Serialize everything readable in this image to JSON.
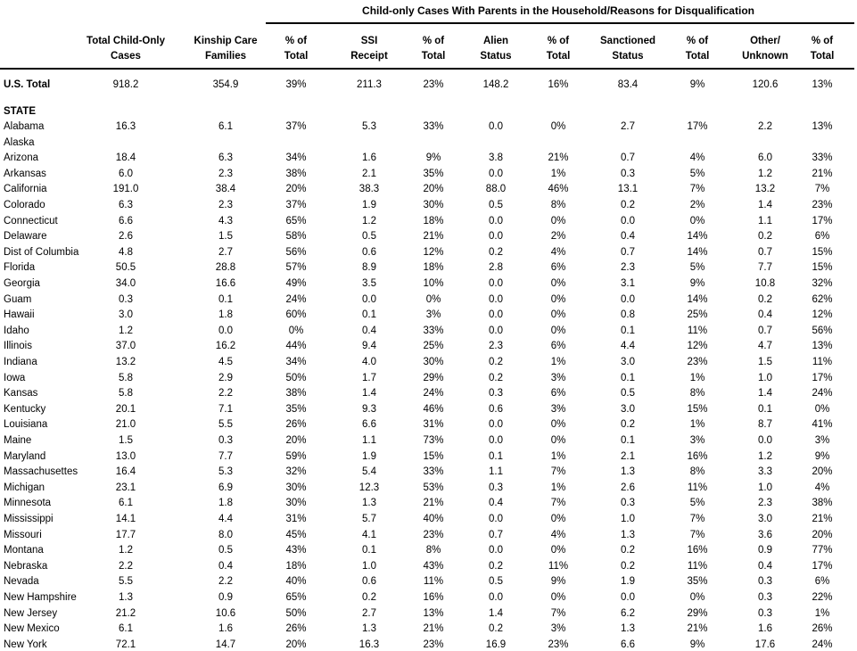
{
  "table": {
    "group_header": "Child-only Cases With Parents in the Household/Reasons for Disqualification",
    "columns": [
      [
        "Total Child-Only",
        "Cases"
      ],
      [
        "Kinship Care",
        "Families"
      ],
      [
        "% of",
        "Total"
      ],
      [
        "SSI",
        "Receipt"
      ],
      [
        "% of",
        "Total"
      ],
      [
        "Alien",
        "Status"
      ],
      [
        "% of",
        "Total"
      ],
      [
        "Sanctioned",
        "Status"
      ],
      [
        "% of",
        "Total"
      ],
      [
        "Other/",
        "Unknown"
      ],
      [
        "% of",
        "Total"
      ]
    ],
    "total_row": {
      "name": "U.S. Total",
      "values": [
        "918.2",
        "354.9",
        "39%",
        "211.3",
        "23%",
        "148.2",
        "16%",
        "83.4",
        "9%",
        "120.6",
        "13%"
      ]
    },
    "section_label": "STATE",
    "rows": [
      {
        "name": "Alabama",
        "values": [
          "16.3",
          "6.1",
          "37%",
          "5.3",
          "33%",
          "0.0",
          "0%",
          "2.7",
          "17%",
          "2.2",
          "13%"
        ]
      },
      {
        "name": "Alaska"
      },
      {
        "name": "Arizona",
        "values": [
          "18.4",
          "6.3",
          "34%",
          "1.6",
          "9%",
          "3.8",
          "21%",
          "0.7",
          "4%",
          "6.0",
          "33%"
        ]
      },
      {
        "name": "Arkansas",
        "values": [
          "6.0",
          "2.3",
          "38%",
          "2.1",
          "35%",
          "0.0",
          "1%",
          "0.3",
          "5%",
          "1.2",
          "21%"
        ]
      },
      {
        "name": "California",
        "values": [
          "191.0",
          "38.4",
          "20%",
          "38.3",
          "20%",
          "88.0",
          "46%",
          "13.1",
          "7%",
          "13.2",
          "7%"
        ]
      },
      {
        "name": "Colorado",
        "values": [
          "6.3",
          "2.3",
          "37%",
          "1.9",
          "30%",
          "0.5",
          "8%",
          "0.2",
          "2%",
          "1.4",
          "23%"
        ]
      },
      {
        "name": "Connecticut",
        "values": [
          "6.6",
          "4.3",
          "65%",
          "1.2",
          "18%",
          "0.0",
          "0%",
          "0.0",
          "0%",
          "1.1",
          "17%"
        ]
      },
      {
        "name": "Delaware",
        "values": [
          "2.6",
          "1.5",
          "58%",
          "0.5",
          "21%",
          "0.0",
          "2%",
          "0.4",
          "14%",
          "0.2",
          "6%"
        ]
      },
      {
        "name": "Dist of Columbia",
        "values": [
          "4.8",
          "2.7",
          "56%",
          "0.6",
          "12%",
          "0.2",
          "4%",
          "0.7",
          "14%",
          "0.7",
          "15%"
        ]
      },
      {
        "name": "Florida",
        "values": [
          "50.5",
          "28.8",
          "57%",
          "8.9",
          "18%",
          "2.8",
          "6%",
          "2.3",
          "5%",
          "7.7",
          "15%"
        ]
      },
      {
        "name": "Georgia",
        "values": [
          "34.0",
          "16.6",
          "49%",
          "3.5",
          "10%",
          "0.0",
          "0%",
          "3.1",
          "9%",
          "10.8",
          "32%"
        ]
      },
      {
        "name": "Guam",
        "values": [
          "0.3",
          "0.1",
          "24%",
          "0.0",
          "0%",
          "0.0",
          "0%",
          "0.0",
          "14%",
          "0.2",
          "62%"
        ]
      },
      {
        "name": "Hawaii",
        "values": [
          "3.0",
          "1.8",
          "60%",
          "0.1",
          "3%",
          "0.0",
          "0%",
          "0.8",
          "25%",
          "0.4",
          "12%"
        ]
      },
      {
        "name": "Idaho",
        "values": [
          "1.2",
          "0.0",
          "0%",
          "0.4",
          "33%",
          "0.0",
          "0%",
          "0.1",
          "11%",
          "0.7",
          "56%"
        ]
      },
      {
        "name": "Illinois",
        "values": [
          "37.0",
          "16.2",
          "44%",
          "9.4",
          "25%",
          "2.3",
          "6%",
          "4.4",
          "12%",
          "4.7",
          "13%"
        ]
      },
      {
        "name": "Indiana",
        "values": [
          "13.2",
          "4.5",
          "34%",
          "4.0",
          "30%",
          "0.2",
          "1%",
          "3.0",
          "23%",
          "1.5",
          "11%"
        ]
      },
      {
        "name": "Iowa",
        "values": [
          "5.8",
          "2.9",
          "50%",
          "1.7",
          "29%",
          "0.2",
          "3%",
          "0.1",
          "1%",
          "1.0",
          "17%"
        ]
      },
      {
        "name": "Kansas",
        "values": [
          "5.8",
          "2.2",
          "38%",
          "1.4",
          "24%",
          "0.3",
          "6%",
          "0.5",
          "8%",
          "1.4",
          "24%"
        ]
      },
      {
        "name": "Kentucky",
        "values": [
          "20.1",
          "7.1",
          "35%",
          "9.3",
          "46%",
          "0.6",
          "3%",
          "3.0",
          "15%",
          "0.1",
          "0%"
        ]
      },
      {
        "name": "Louisiana",
        "values": [
          "21.0",
          "5.5",
          "26%",
          "6.6",
          "31%",
          "0.0",
          "0%",
          "0.2",
          "1%",
          "8.7",
          "41%"
        ]
      },
      {
        "name": "Maine",
        "values": [
          "1.5",
          "0.3",
          "20%",
          "1.1",
          "73%",
          "0.0",
          "0%",
          "0.1",
          "3%",
          "0.0",
          "3%"
        ]
      },
      {
        "name": "Maryland",
        "values": [
          "13.0",
          "7.7",
          "59%",
          "1.9",
          "15%",
          "0.1",
          "1%",
          "2.1",
          "16%",
          "1.2",
          "9%"
        ]
      },
      {
        "name": "Massachusettes",
        "values": [
          "16.4",
          "5.3",
          "32%",
          "5.4",
          "33%",
          "1.1",
          "7%",
          "1.3",
          "8%",
          "3.3",
          "20%"
        ]
      },
      {
        "name": "Michigan",
        "values": [
          "23.1",
          "6.9",
          "30%",
          "12.3",
          "53%",
          "0.3",
          "1%",
          "2.6",
          "11%",
          "1.0",
          "4%"
        ]
      },
      {
        "name": "Minnesota",
        "values": [
          "6.1",
          "1.8",
          "30%",
          "1.3",
          "21%",
          "0.4",
          "7%",
          "0.3",
          "5%",
          "2.3",
          "38%"
        ]
      },
      {
        "name": "Mississippi",
        "values": [
          "14.1",
          "4.4",
          "31%",
          "5.7",
          "40%",
          "0.0",
          "0%",
          "1.0",
          "7%",
          "3.0",
          "21%"
        ]
      },
      {
        "name": "Missouri",
        "values": [
          "17.7",
          "8.0",
          "45%",
          "4.1",
          "23%",
          "0.7",
          "4%",
          "1.3",
          "7%",
          "3.6",
          "20%"
        ]
      },
      {
        "name": "Montana",
        "values": [
          "1.2",
          "0.5",
          "43%",
          "0.1",
          "8%",
          "0.0",
          "0%",
          "0.2",
          "16%",
          "0.9",
          "77%"
        ]
      },
      {
        "name": "Nebraska",
        "values": [
          "2.2",
          "0.4",
          "18%",
          "1.0",
          "43%",
          "0.2",
          "11%",
          "0.2",
          "11%",
          "0.4",
          "17%"
        ]
      },
      {
        "name": "Nevada",
        "values": [
          "5.5",
          "2.2",
          "40%",
          "0.6",
          "11%",
          "0.5",
          "9%",
          "1.9",
          "35%",
          "0.3",
          "6%"
        ]
      },
      {
        "name": "New Hampshire",
        "values": [
          "1.3",
          "0.9",
          "65%",
          "0.2",
          "16%",
          "0.0",
          "0%",
          "0.0",
          "0%",
          "0.3",
          "22%"
        ]
      },
      {
        "name": "New Jersey",
        "values": [
          "21.2",
          "10.6",
          "50%",
          "2.7",
          "13%",
          "1.4",
          "7%",
          "6.2",
          "29%",
          "0.3",
          "1%"
        ]
      },
      {
        "name": "New Mexico",
        "values": [
          "6.1",
          "1.6",
          "26%",
          "1.3",
          "21%",
          "0.2",
          "3%",
          "1.3",
          "21%",
          "1.6",
          "26%"
        ]
      },
      {
        "name": "New York",
        "values": [
          "72.1",
          "14.7",
          "20%",
          "16.3",
          "23%",
          "16.9",
          "23%",
          "6.6",
          "9%",
          "17.6",
          "24%"
        ]
      }
    ]
  }
}
